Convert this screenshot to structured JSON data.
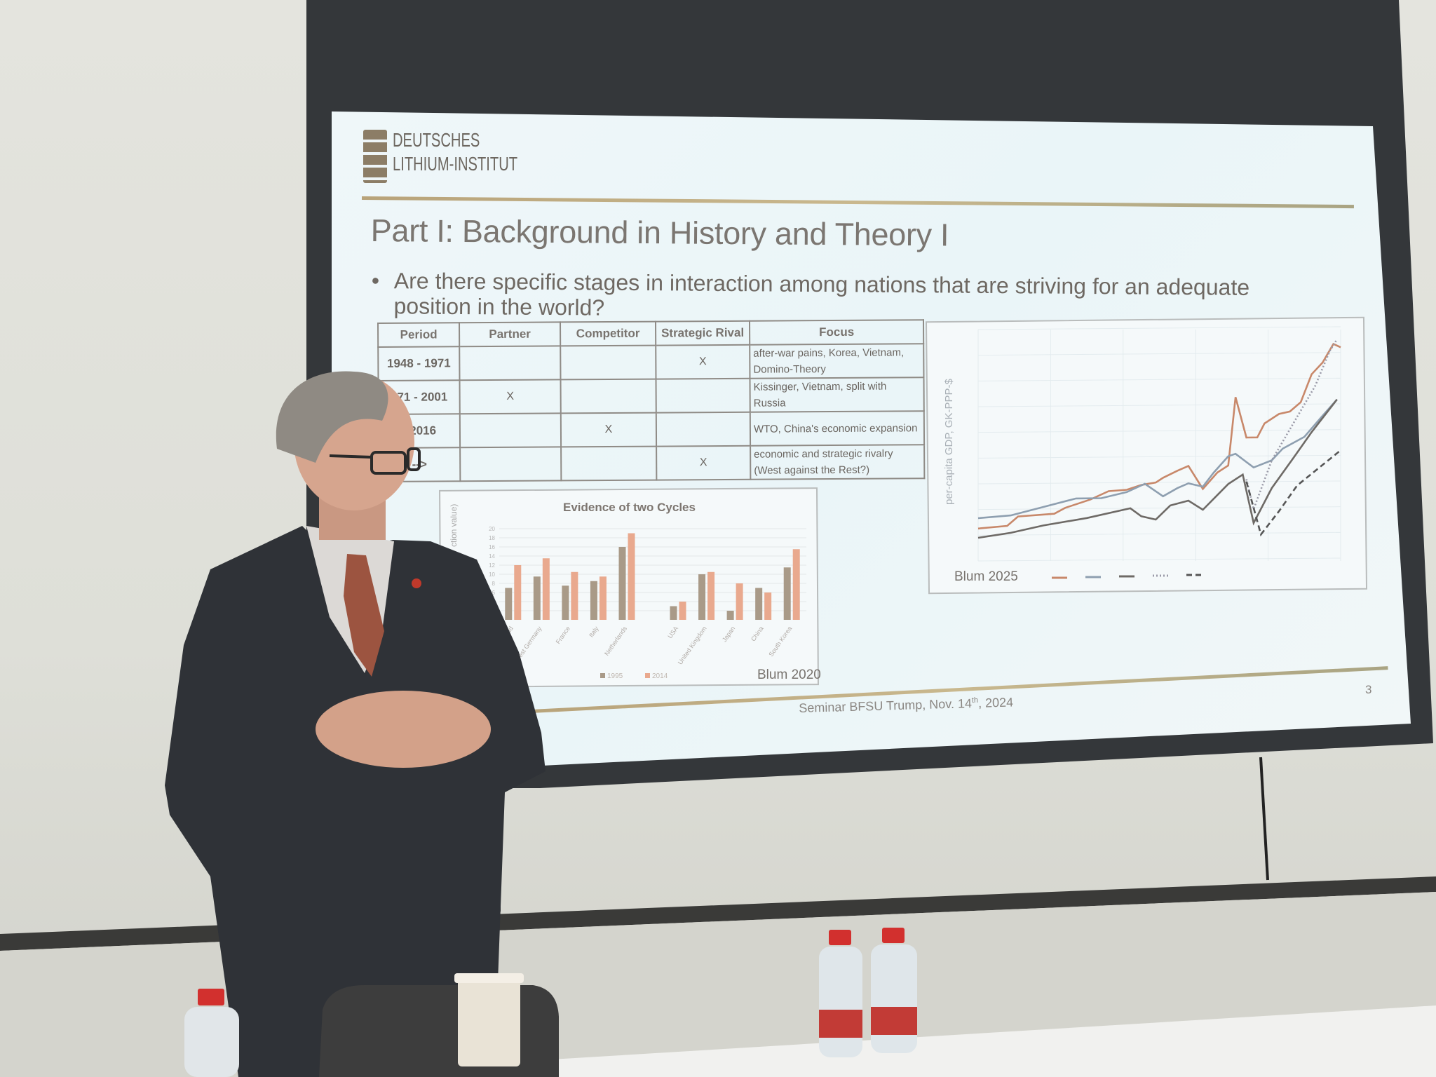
{
  "slide": {
    "logo": {
      "line1": "DEUTSCHES",
      "line2": "LITHIUM-INSTITUT"
    },
    "title": "Part I: Background in History and Theory I",
    "bullet": "Are there specific stages in interaction among nations that are striving for an adequate position in the world?",
    "table": {
      "headers": [
        "Period",
        "Partner",
        "Competitor",
        "Strategic Rival",
        "Focus"
      ],
      "rows": [
        {
          "period": "1948 - 1971",
          "partner": "",
          "competitor": "",
          "rival": "X",
          "focus": "after-war pains, Korea, Vietnam, Domino-Theory"
        },
        {
          "period": "971 - 2001",
          "partner": "X",
          "competitor": "",
          "rival": "",
          "focus": "Kissinger, Vietnam, split with Russia"
        },
        {
          "period": "- 2016",
          "partner": "",
          "competitor": "X",
          "rival": "",
          "focus": "WTO, China's economic expansion"
        },
        {
          "period": "-->",
          "partner": "",
          "competitor": "",
          "rival": "X",
          "focus": "economic and strategic rivalry (West against the Rest?)"
        }
      ]
    },
    "footer": {
      "text": "Seminar BFSU Trump, Nov. 14",
      "sup": "th",
      "year": ", 2024"
    },
    "page_number": "3"
  },
  "chart_data": [
    {
      "type": "bar",
      "title": "Evidence of two Cycles",
      "ylabel": "ction value)",
      "ylim": [
        0,
        20
      ],
      "yticks": [
        "2",
        "4",
        "6",
        "8",
        "10",
        "12",
        "14",
        "16",
        "18",
        "20"
      ],
      "grid": true,
      "legend": "bottom",
      "source": "Blum 2020",
      "categories": [
        "land",
        "West Germany",
        "France",
        "Italy",
        "Netherlands",
        "USA",
        "United Kingdom",
        "Japan",
        "China",
        "South Korea"
      ],
      "series": [
        {
          "name": "1995",
          "color": "#a99a88",
          "values": [
            7,
            9.5,
            7.5,
            8.5,
            16,
            3,
            10,
            2,
            7,
            11.5
          ]
        },
        {
          "name": "2014",
          "color": "#e9a98e",
          "values": [
            12,
            13.5,
            10.5,
            9.5,
            19,
            4,
            10.5,
            8,
            6,
            15.5
          ]
        }
      ]
    },
    {
      "type": "line",
      "ylabel": "per-capita GDP, GK-PPP-$",
      "source": "Blum 2025",
      "grid": true,
      "legend": "bottom",
      "note": "tick labels and legend names illegible; x and y given as percent of the plotted axis span",
      "series": [
        {
          "color": "#c8886a",
          "style": "solid",
          "points": [
            [
              0,
              14
            ],
            [
              8,
              15
            ],
            [
              11,
              19
            ],
            [
              21,
              20
            ],
            [
              24,
              22.5
            ],
            [
              27,
              24
            ],
            [
              31,
              26
            ],
            [
              36,
              29.5
            ],
            [
              41,
              30
            ],
            [
              45,
              32
            ],
            [
              49,
              33
            ],
            [
              51,
              35
            ],
            [
              55,
              38
            ],
            [
              58,
              40
            ],
            [
              62,
              30
            ],
            [
              66,
              37
            ],
            [
              69,
              40
            ],
            [
              71,
              69.5
            ],
            [
              74,
              52
            ],
            [
              77,
              52
            ],
            [
              79,
              58
            ],
            [
              83,
              62
            ],
            [
              86,
              63
            ],
            [
              89,
              67
            ],
            [
              92,
              79
            ],
            [
              95,
              84
            ],
            [
              98,
              92
            ],
            [
              100,
              90.5
            ]
          ]
        },
        {
          "color": "#8e9fb0",
          "style": "solid",
          "points": [
            [
              0,
              18.5
            ],
            [
              9,
              19.5
            ],
            [
              18,
              23
            ],
            [
              27,
              26.5
            ],
            [
              34,
              26.5
            ],
            [
              41,
              29
            ],
            [
              46,
              32.5
            ],
            [
              51,
              27
            ],
            [
              55,
              30.5
            ],
            [
              58,
              32.5
            ],
            [
              62,
              31
            ],
            [
              65,
              37
            ],
            [
              69,
              44
            ],
            [
              71,
              45
            ],
            [
              76,
              39
            ],
            [
              81,
              42
            ],
            [
              84,
              47
            ],
            [
              90,
              52
            ],
            [
              95,
              61
            ],
            [
              99,
              68
            ]
          ]
        },
        {
          "color": "#6e6a66",
          "style": "solid",
          "points": [
            [
              0,
              10
            ],
            [
              9,
              12
            ],
            [
              18,
              15
            ],
            [
              30,
              18
            ],
            [
              42,
              22
            ],
            [
              45,
              18.5
            ],
            [
              49,
              17
            ],
            [
              53,
              23
            ],
            [
              58,
              25
            ],
            [
              62,
              21
            ],
            [
              69,
              32
            ],
            [
              73,
              36
            ],
            [
              76,
              15
            ],
            [
              81,
              30
            ],
            [
              87,
              43
            ],
            [
              92,
              54
            ],
            [
              99,
              68
            ]
          ]
        },
        {
          "color": "#9a9aa8",
          "style": "dotted",
          "points": [
            [
              74,
              34
            ],
            [
              76,
              21
            ],
            [
              81,
              42
            ],
            [
              87,
              58
            ],
            [
              93,
              74
            ],
            [
              97,
              89
            ],
            [
              99,
              94
            ]
          ]
        },
        {
          "color": "#555555",
          "style": "dashed",
          "points": [
            [
              74,
              33
            ],
            [
              78,
              10
            ],
            [
              83,
              20
            ],
            [
              88,
              31
            ],
            [
              92,
              36
            ],
            [
              100,
              46
            ]
          ]
        }
      ]
    }
  ]
}
